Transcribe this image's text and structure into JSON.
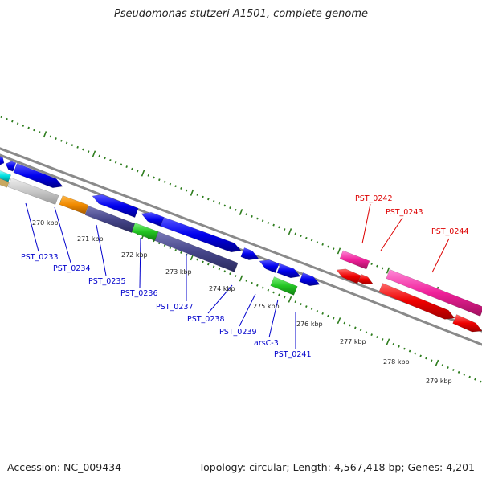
{
  "title": "Pseudomonas stutzeri A1501, complete genome",
  "footer": {
    "accession": "Accession: NC_009434",
    "summary": "Topology: circular; Length: 4,567,418 bp; Genes: 4,201"
  },
  "colors": {
    "backbone": "#8a8a8a",
    "ticks": "#2e7d1e",
    "label_blue": "#0000cc",
    "label_red": "#dd0000"
  },
  "scale_labels": [
    {
      "text": "270 kbp"
    },
    {
      "text": "271 kbp"
    },
    {
      "text": "272 kbp"
    },
    {
      "text": "273 kbp"
    },
    {
      "text": "274 kbp"
    },
    {
      "text": "275 kbp"
    },
    {
      "text": "276 kbp"
    },
    {
      "text": "277 kbp"
    },
    {
      "text": "278 kbp"
    },
    {
      "text": "279 kbp"
    }
  ],
  "gene_labels": [
    {
      "text": "PST_0233",
      "color": "#0000cc"
    },
    {
      "text": "PST_0234",
      "color": "#0000cc"
    },
    {
      "text": "PST_0235",
      "color": "#0000cc"
    },
    {
      "text": "PST_0236",
      "color": "#0000cc"
    },
    {
      "text": "PST_0237",
      "color": "#0000cc"
    },
    {
      "text": "PST_0238",
      "color": "#0000cc"
    },
    {
      "text": "PST_0239",
      "color": "#0000cc"
    },
    {
      "text": "arsC-3",
      "color": "#0000cc"
    },
    {
      "text": "PST_0241",
      "color": "#0000cc"
    },
    {
      "text": "PST_0242",
      "color": "#dd0000"
    },
    {
      "text": "PST_0243",
      "color": "#dd0000"
    },
    {
      "text": "PST_0244",
      "color": "#dd0000"
    }
  ]
}
